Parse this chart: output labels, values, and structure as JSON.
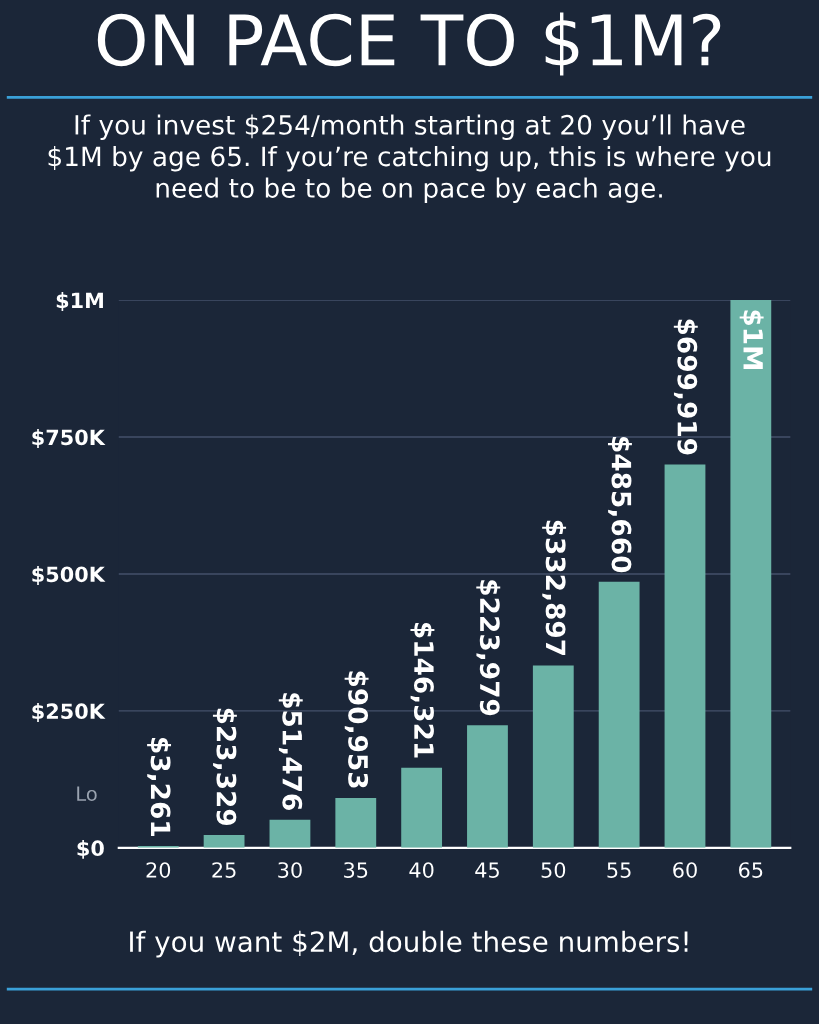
{
  "chart_data": {
    "type": "bar",
    "title": "ON PACE TO $1M?",
    "subtitle": "If you invest $254/month starting at 20 you’ll have\n$1M by age 65. If you’re catching up, this is where you\nneed to be to be on pace by each age.",
    "categories": [
      "20",
      "25",
      "30",
      "35",
      "40",
      "45",
      "50",
      "55",
      "60",
      "65"
    ],
    "values": [
      3261,
      23329,
      51476,
      90953,
      146321,
      223979,
      332897,
      485660,
      699919,
      1000000
    ],
    "value_labels": [
      "$3,261",
      "$23,329",
      "$51,476",
      "$90,953",
      "$146,321",
      "$223,979",
      "$332,897",
      "$485,660",
      "$699,919",
      "$1M"
    ],
    "color": "#6bb3a6",
    "ylim": [
      0,
      1000000
    ],
    "yticks": [
      {
        "value": 0,
        "label": "$0"
      },
      {
        "value": 250000,
        "label": "$250K"
      },
      {
        "value": 500000,
        "label": "$500K"
      },
      {
        "value": 750000,
        "label": "$750K"
      },
      {
        "value": 1000000,
        "label": "$1M"
      }
    ],
    "grid": "y",
    "annotations": [
      "Lo",
      "If you want $2M, double these numbers!"
    ]
  }
}
